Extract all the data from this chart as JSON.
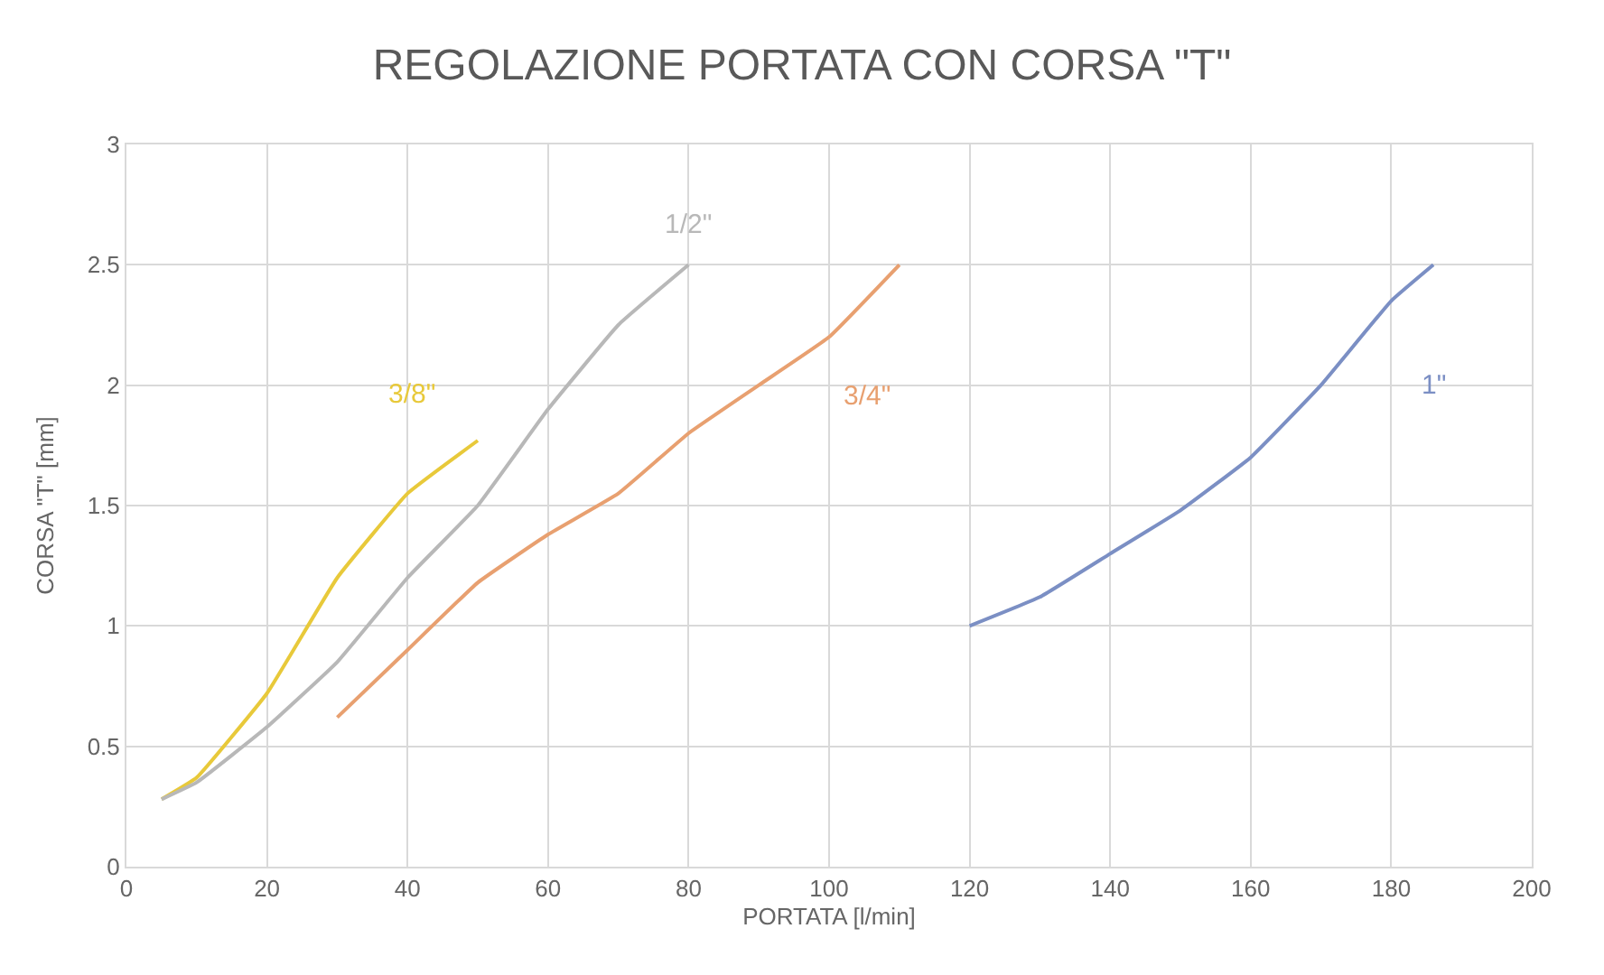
{
  "chart_data": {
    "type": "line",
    "title": "REGOLAZIONE PORTATA CON CORSA \"T\"",
    "xlabel": "PORTATA [l/min]",
    "ylabel": "CORSA \"T\" [mm]",
    "xlim": [
      0,
      200
    ],
    "xticks": [
      0,
      20,
      40,
      60,
      80,
      100,
      120,
      140,
      160,
      180,
      200
    ],
    "ylim": [
      0,
      3
    ],
    "yticks": [
      0,
      0.5,
      1,
      1.5,
      2,
      2.5,
      3
    ],
    "grid": true,
    "legend": false,
    "marker": "none",
    "line_style": "solid",
    "series": [
      {
        "name": "3/8\"",
        "color": "#e8c93a",
        "x": [
          5,
          10,
          20,
          30,
          40,
          50
        ],
        "values": [
          0.28,
          0.37,
          0.72,
          1.2,
          1.55,
          1.77
        ]
      },
      {
        "name": "1/2\"",
        "color": "#b8b8b8",
        "x": [
          5,
          10,
          20,
          30,
          40,
          50,
          60,
          70,
          80
        ],
        "values": [
          0.28,
          0.35,
          0.58,
          0.85,
          1.2,
          1.5,
          1.9,
          2.25,
          2.5
        ]
      },
      {
        "name": "3/4\"",
        "color": "#e8a070",
        "x": [
          30,
          40,
          50,
          60,
          70,
          80,
          90,
          100,
          110
        ],
        "values": [
          0.62,
          0.9,
          1.18,
          1.38,
          1.55,
          1.8,
          2.0,
          2.2,
          2.5
        ]
      },
      {
        "name": "1\"",
        "color": "#7b8fc4",
        "x": [
          120,
          130,
          140,
          150,
          160,
          170,
          180,
          186
        ],
        "values": [
          1.0,
          1.12,
          1.3,
          1.48,
          1.7,
          2.0,
          2.35,
          2.5
        ]
      }
    ]
  }
}
